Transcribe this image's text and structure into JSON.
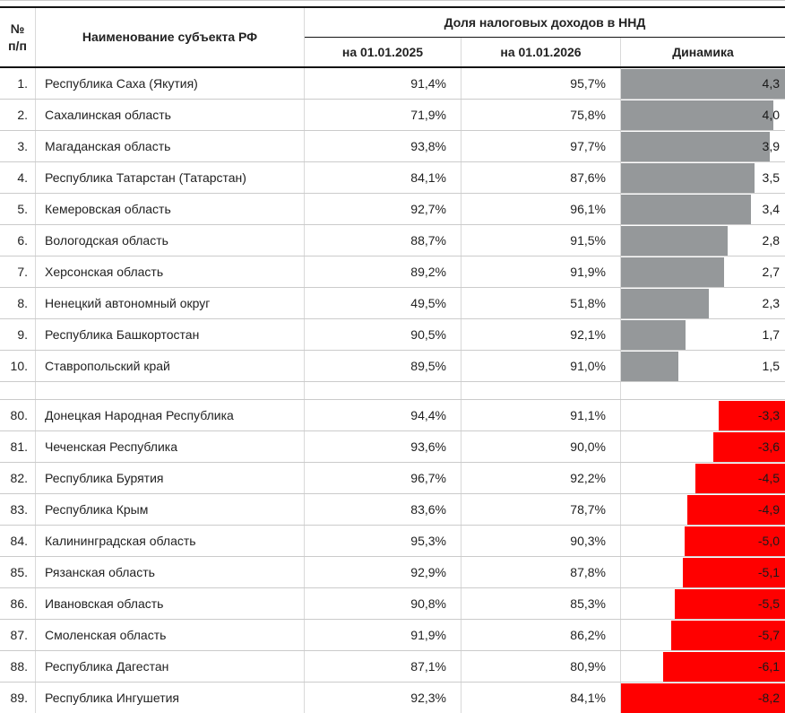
{
  "header": {
    "num_line1": "№",
    "num_line2": "п/п",
    "region": "Наименование субъекта РФ",
    "group_title": "Доля налоговых доходов в ННД",
    "date1": "на 01.01.2025",
    "date2": "на 01.01.2026",
    "dynamics": "Динамика"
  },
  "colors": {
    "positive_bar": "#95989a",
    "negative_bar": "#ff0000",
    "header_border": "#141414",
    "row_border": "#cbcbcb"
  },
  "chart_data": {
    "type": "table",
    "title": "Доля налоговых доходов в ННД",
    "columns": [
      "№ п/п",
      "Наименование субъекта РФ",
      "на 01.01.2025",
      "на 01.01.2026",
      "Динамика"
    ],
    "bar_style": {
      "positive_color": "#95989a",
      "negative_color": "#ff0000",
      "positive_full_scale": 4.3,
      "negative_full_scale": -8.2,
      "positive_anchor": "left",
      "negative_anchor": "right"
    },
    "groups": [
      {
        "rows": [
          {
            "num": "1.",
            "name": "Республика Саха (Якутия)",
            "share_2025": "91,4%",
            "share_2026": "95,7%",
            "dynamics_label": "4,3",
            "dynamics_value": 4.3
          },
          {
            "num": "2.",
            "name": "Сахалинская область",
            "share_2025": "71,9%",
            "share_2026": "75,8%",
            "dynamics_label": "4,0",
            "dynamics_value": 4.0
          },
          {
            "num": "3.",
            "name": "Магаданская область",
            "share_2025": "93,8%",
            "share_2026": "97,7%",
            "dynamics_label": "3,9",
            "dynamics_value": 3.9
          },
          {
            "num": "4.",
            "name": "Республика Татарстан (Татарстан)",
            "share_2025": "84,1%",
            "share_2026": "87,6%",
            "dynamics_label": "3,5",
            "dynamics_value": 3.5
          },
          {
            "num": "5.",
            "name": "Кемеровская область",
            "share_2025": "92,7%",
            "share_2026": "96,1%",
            "dynamics_label": "3,4",
            "dynamics_value": 3.4
          },
          {
            "num": "6.",
            "name": "Вологодская область",
            "share_2025": "88,7%",
            "share_2026": "91,5%",
            "dynamics_label": "2,8",
            "dynamics_value": 2.8
          },
          {
            "num": "7.",
            "name": "Херсонская область",
            "share_2025": "89,2%",
            "share_2026": "91,9%",
            "dynamics_label": "2,7",
            "dynamics_value": 2.7
          },
          {
            "num": "8.",
            "name": "Ненецкий автономный округ",
            "share_2025": "49,5%",
            "share_2026": "51,8%",
            "dynamics_label": "2,3",
            "dynamics_value": 2.3
          },
          {
            "num": "9.",
            "name": "Республика Башкортостан",
            "share_2025": "90,5%",
            "share_2026": "92,1%",
            "dynamics_label": "1,7",
            "dynamics_value": 1.7
          },
          {
            "num": "10.",
            "name": "Ставропольский край",
            "share_2025": "89,5%",
            "share_2026": "91,0%",
            "dynamics_label": "1,5",
            "dynamics_value": 1.5
          }
        ]
      },
      {
        "rows": [
          {
            "num": "80.",
            "name": "Донецкая Народная Республика",
            "share_2025": "94,4%",
            "share_2026": "91,1%",
            "dynamics_label": "-3,3",
            "dynamics_value": -3.3
          },
          {
            "num": "81.",
            "name": "Чеченская Республика",
            "share_2025": "93,6%",
            "share_2026": "90,0%",
            "dynamics_label": "-3,6",
            "dynamics_value": -3.6
          },
          {
            "num": "82.",
            "name": "Республика Бурятия",
            "share_2025": "96,7%",
            "share_2026": "92,2%",
            "dynamics_label": "-4,5",
            "dynamics_value": -4.5
          },
          {
            "num": "83.",
            "name": "Республика Крым",
            "share_2025": "83,6%",
            "share_2026": "78,7%",
            "dynamics_label": "-4,9",
            "dynamics_value": -4.9
          },
          {
            "num": "84.",
            "name": "Калининградская область",
            "share_2025": "95,3%",
            "share_2026": "90,3%",
            "dynamics_label": "-5,0",
            "dynamics_value": -5.0
          },
          {
            "num": "85.",
            "name": "Рязанская область",
            "share_2025": "92,9%",
            "share_2026": "87,8%",
            "dynamics_label": "-5,1",
            "dynamics_value": -5.1
          },
          {
            "num": "86.",
            "name": "Ивановская область",
            "share_2025": "90,8%",
            "share_2026": "85,3%",
            "dynamics_label": "-5,5",
            "dynamics_value": -5.5
          },
          {
            "num": "87.",
            "name": "Смоленская область",
            "share_2025": "91,9%",
            "share_2026": "86,2%",
            "dynamics_label": "-5,7",
            "dynamics_value": -5.7
          },
          {
            "num": "88.",
            "name": "Республика Дагестан",
            "share_2025": "87,1%",
            "share_2026": "80,9%",
            "dynamics_label": "-6,1",
            "dynamics_value": -6.1
          },
          {
            "num": "89.",
            "name": "Республика Ингушетия",
            "share_2025": "92,3%",
            "share_2026": "84,1%",
            "dynamics_label": "-8,2",
            "dynamics_value": -8.2
          }
        ]
      }
    ]
  }
}
